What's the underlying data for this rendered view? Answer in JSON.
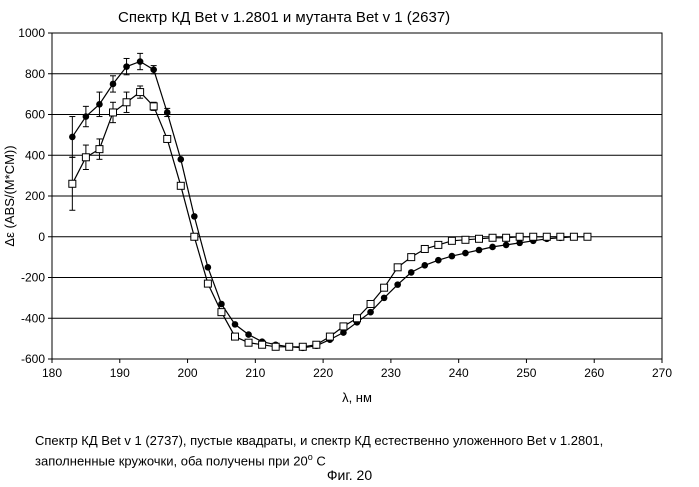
{
  "chart_data": {
    "type": "line",
    "title": "Спектр КД Bet v 1.2801 и мутанта Bet v 1 (2637)",
    "xlabel": "λ, нм",
    "ylabel": "Δε (ABS/(M*CM))",
    "xlim": [
      180,
      270
    ],
    "ylim": [
      -600,
      1000
    ],
    "xticks": [
      180,
      190,
      200,
      210,
      220,
      230,
      240,
      250,
      260,
      270
    ],
    "yticks": [
      -600,
      -400,
      -200,
      0,
      200,
      400,
      600,
      800,
      1000
    ],
    "grid": "horizontal",
    "series": [
      {
        "marker": "filled-circle",
        "x": [
          183,
          185,
          187,
          189,
          191,
          193,
          195,
          197,
          199,
          201,
          203,
          205,
          207,
          209,
          211,
          213,
          215,
          217,
          219,
          221,
          223,
          225,
          227,
          229,
          231,
          233,
          235,
          237,
          239,
          241,
          243,
          245,
          247,
          249,
          251,
          253,
          255,
          257
        ],
        "y": [
          490,
          590,
          650,
          750,
          835,
          860,
          820,
          610,
          380,
          100,
          -150,
          -330,
          -430,
          -480,
          -515,
          -530,
          -540,
          -545,
          -535,
          -505,
          -470,
          -420,
          -370,
          -300,
          -235,
          -175,
          -140,
          -115,
          -95,
          -80,
          -65,
          -50,
          -40,
          -30,
          -20,
          -10,
          -5,
          0
        ],
        "err": [
          100,
          50,
          60,
          40,
          40,
          40,
          20,
          20,
          0,
          0,
          0,
          0,
          0,
          0,
          0,
          0,
          0,
          0,
          0,
          0,
          0,
          0,
          0,
          0,
          0,
          0,
          0,
          0,
          0,
          0,
          0,
          0,
          0,
          0,
          0,
          0,
          0,
          0
        ]
      },
      {
        "marker": "open-square",
        "x": [
          183,
          185,
          187,
          189,
          191,
          193,
          195,
          197,
          199,
          201,
          203,
          205,
          207,
          209,
          211,
          213,
          215,
          217,
          219,
          221,
          223,
          225,
          227,
          229,
          231,
          233,
          235,
          237,
          239,
          241,
          243,
          245,
          247,
          249,
          251,
          253,
          255,
          257,
          259
        ],
        "y": [
          260,
          390,
          430,
          610,
          660,
          710,
          640,
          480,
          250,
          0,
          -230,
          -370,
          -490,
          -520,
          -530,
          -540,
          -540,
          -540,
          -530,
          -490,
          -440,
          -400,
          -330,
          -250,
          -150,
          -100,
          -60,
          -40,
          -20,
          -15,
          -10,
          -5,
          -5,
          0,
          0,
          0,
          0,
          0,
          0
        ],
        "err": [
          130,
          60,
          50,
          50,
          50,
          30,
          20,
          15,
          0,
          0,
          0,
          0,
          0,
          0,
          0,
          0,
          0,
          0,
          0,
          0,
          0,
          0,
          0,
          0,
          0,
          0,
          0,
          0,
          0,
          0,
          0,
          0,
          0,
          0,
          0,
          0,
          0,
          0,
          0
        ]
      }
    ]
  },
  "caption": {
    "line1": "Спектр КД Bet v 1 (2737), пустые квадраты, и спектр КД естественно уложенного Bet v 1.2801,",
    "line2": "заполненные кружочки, оба получены при 20",
    "degree": "o",
    "line2_end": " C"
  },
  "figure_label": "Фиг. 20"
}
